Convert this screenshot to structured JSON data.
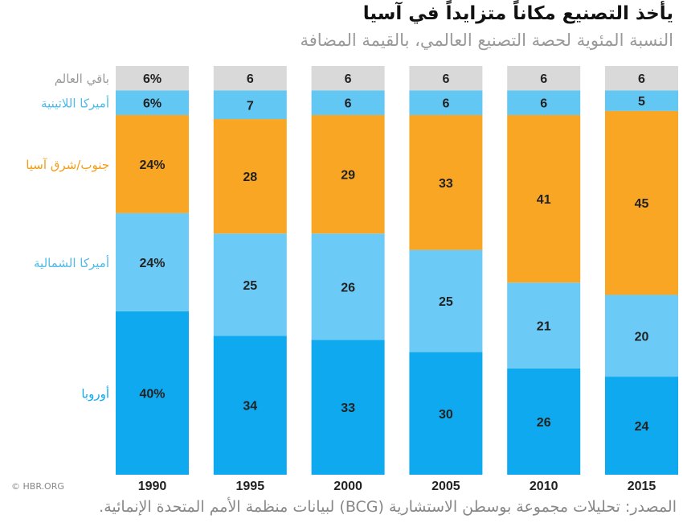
{
  "header": {
    "title": "يأخذ التصنيع مكاناً متزايداً في آسيا",
    "subtitle": "النسبة المئوية لحصة التصنيع العالمي، بالقيمة المضافة"
  },
  "footer": {
    "source": "المصدر: تحليلات مجموعة بوسطن الاستشارية (BCG) لبيانات منظمة الأمم المتحدة الإنمائية.",
    "credit": "© HBR.ORG"
  },
  "chart_data": {
    "type": "bar",
    "stacked": true,
    "categories": [
      "1990",
      "1995",
      "2000",
      "2005",
      "2010",
      "2015"
    ],
    "ylim": [
      0,
      100
    ],
    "grid": false,
    "legend": "left",
    "first_column_percent_labels": true,
    "series": [
      {
        "name": "أوروبا",
        "color": "#0ea9ee",
        "label_color": "#0ea9ee",
        "values": [
          40,
          34,
          33,
          30,
          26,
          24
        ]
      },
      {
        "name": "أميركا الشمالية",
        "color": "#6ccbf6",
        "label_color": "#4fbbe9",
        "values": [
          24,
          25,
          26,
          25,
          21,
          20
        ]
      },
      {
        "name": "جنوب/شرق آسيا",
        "color": "#f8a623",
        "label_color": "#f59d12",
        "values": [
          24,
          28,
          29,
          33,
          41,
          45
        ]
      },
      {
        "name": "أميركا اللاتينية",
        "color": "#63c7f3",
        "label_color": "#4fbbe9",
        "values": [
          6,
          7,
          6,
          6,
          6,
          5
        ]
      },
      {
        "name": "باقي العالم",
        "color": "#d9d9d9",
        "label_color": "#999999",
        "values": [
          6,
          6,
          6,
          6,
          6,
          6
        ]
      }
    ]
  }
}
